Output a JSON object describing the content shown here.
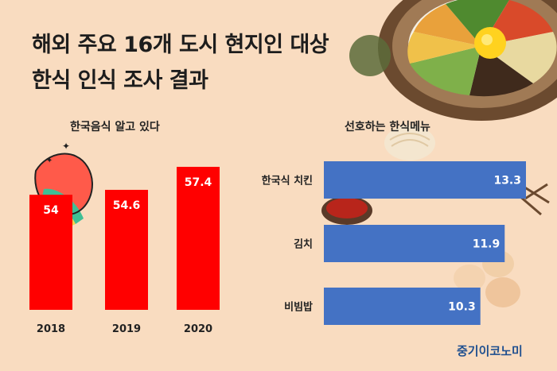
{
  "header": {
    "title_line1": "해외 주요 16개 도시 현지인 대상",
    "title_line2": "한식 인식 조사 결과"
  },
  "chart_data": [
    {
      "type": "bar",
      "title": "한국음식 알고 있다",
      "categories": [
        "2018",
        "2019",
        "2020"
      ],
      "values": [
        54,
        54.6,
        57.4
      ],
      "color": "#ff0000",
      "orientation": "vertical"
    },
    {
      "type": "bar",
      "title": "선호하는 한식메뉴",
      "categories": [
        "한국식 치킨",
        "김치",
        "비빔밥"
      ],
      "values": [
        13.3,
        11.9,
        10.3
      ],
      "color": "#4472c4",
      "orientation": "horizontal"
    }
  ],
  "footer": {
    "credit": "중기이코노미"
  },
  "colors": {
    "background": "#f9dcc0",
    "accent_red": "#ff0000",
    "accent_blue": "#4472c4",
    "credit": "#1f4f8f"
  },
  "icons": [
    "bibimbap-bowl-icon",
    "korean-food-icon",
    "sauce-dish-icon",
    "eggs-icon",
    "noodles-icon"
  ]
}
